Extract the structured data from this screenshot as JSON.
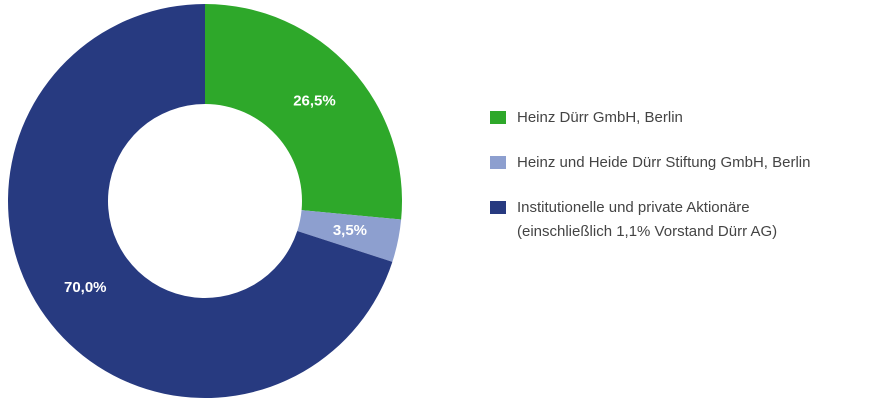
{
  "chart_data": {
    "type": "donut",
    "categories": [
      "Heinz Dürr GmbH, Berlin",
      "Heinz und Heide Dürr Stiftung GmbH, Berlin",
      "Institutionelle und private Aktionäre\n(einschließlich 1,1% Vorstand Dürr AG)"
    ],
    "values": [
      26.5,
      3.5,
      70.0
    ],
    "value_labels": [
      "26,5%",
      "3,5%",
      "70,0%"
    ],
    "colors": [
      "#2ea82a",
      "#8d9fcf",
      "#273a80"
    ],
    "legend": "right"
  }
}
